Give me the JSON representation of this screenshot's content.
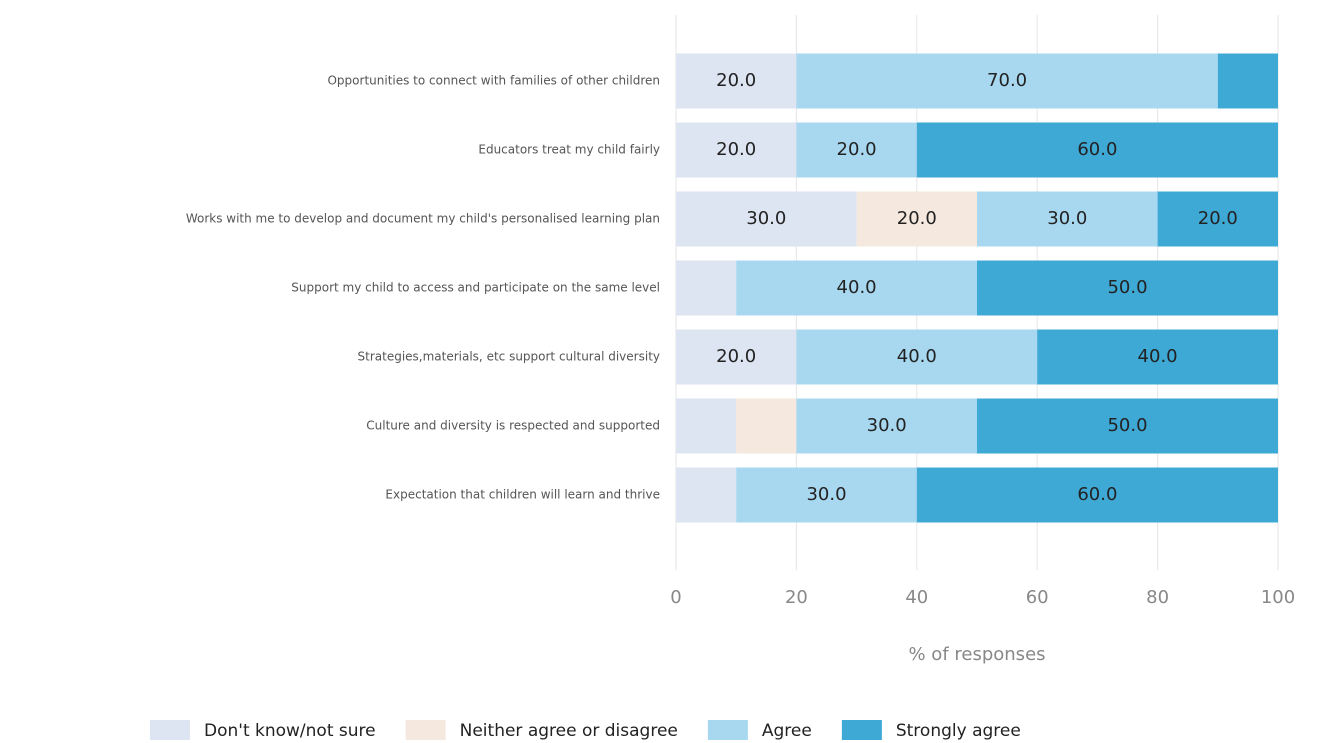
{
  "chart_data": {
    "type": "stacked-bar-horizontal",
    "categories": [
      "Opportunities to connect with families of other children",
      "Educators treat my child fairly",
      "Works with me to develop and document my child's personalised learning plan",
      "Support my child to access and participate on the same level",
      "Strategies,materials, etc support cultural diversity",
      "Culture and diversity is respected and supported",
      "Expectation that children will learn and thrive"
    ],
    "series": [
      {
        "name": "Don't know/not sure",
        "color": "#dde4f2",
        "values": [
          20,
          20,
          30,
          10,
          20,
          10,
          10
        ],
        "value_labels": [
          "20.0",
          "20.0",
          "30.0",
          null,
          "20.0",
          null,
          null
        ]
      },
      {
        "name": "Neither agree or disagree",
        "color": "#f5e8df",
        "values": [
          0,
          0,
          20,
          0,
          0,
          10,
          0
        ],
        "value_labels": [
          null,
          null,
          "20.0",
          null,
          null,
          null,
          null
        ]
      },
      {
        "name": "Agree",
        "color": "#a8d8f0",
        "values": [
          70,
          20,
          30,
          40,
          40,
          30,
          30
        ],
        "value_labels": [
          "70.0",
          "20.0",
          "30.0",
          "40.0",
          "40.0",
          "30.0",
          "30.0"
        ]
      },
      {
        "name": "Strongly agree",
        "color": "#3fa9d6",
        "values": [
          10,
          60,
          20,
          50,
          40,
          50,
          60
        ],
        "value_labels": [
          null,
          "60.0",
          "20.0",
          "50.0",
          "40.0",
          "50.0",
          "60.0"
        ]
      }
    ],
    "xlabel": "% of responses",
    "xlim": [
      0,
      100
    ],
    "xticks": [
      0,
      20,
      40,
      60,
      80,
      100
    ],
    "grid": true,
    "legend": "bottom"
  }
}
